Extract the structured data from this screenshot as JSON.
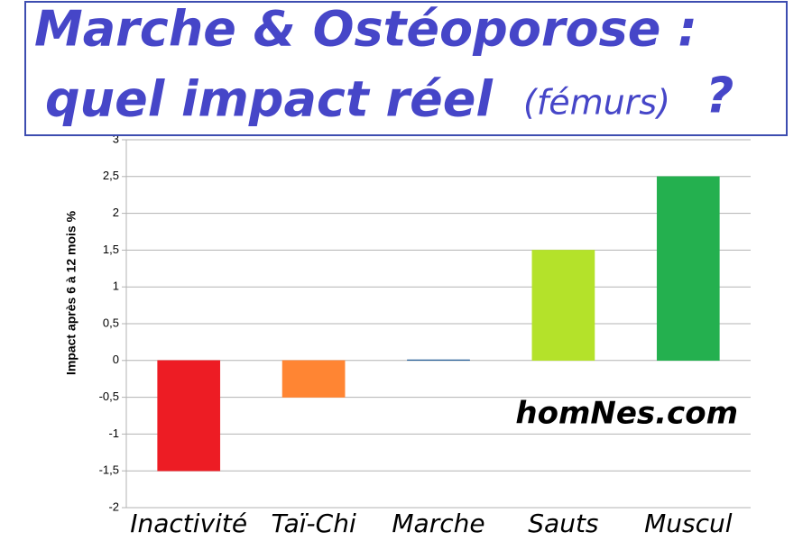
{
  "chart_data": {
    "type": "bar",
    "title": [
      "Marche & Ostéoporose :",
      "quel impact réel",
      "(fémurs)",
      "?"
    ],
    "y_label": "Impact après 6 à 12 mois %",
    "annotation": "homNes.com",
    "categories": [
      "Inactivité",
      "Taï-Chi",
      "Marche",
      "Sauts",
      "Muscul"
    ],
    "values": [
      -1.5,
      -0.5,
      0.01,
      1.5,
      2.5
    ],
    "colors": [
      "#ed1c24",
      "#ff8533",
      "#2a6099",
      "#b4e22a",
      "#24b04f"
    ],
    "ylim": [
      -2,
      3
    ],
    "yticks": [
      {
        "value": -2,
        "label": "-2"
      },
      {
        "value": -1.5,
        "label": "-1,5"
      },
      {
        "value": -1,
        "label": "-1"
      },
      {
        "value": -0.5,
        "label": "-0,5"
      },
      0,
      {
        "value": 0.5,
        "label": "0,5"
      },
      1,
      {
        "value": 1.5,
        "label": "1,5"
      },
      2,
      {
        "value": 2.5,
        "label": "2,5"
      },
      3
    ],
    "grid": true
  }
}
